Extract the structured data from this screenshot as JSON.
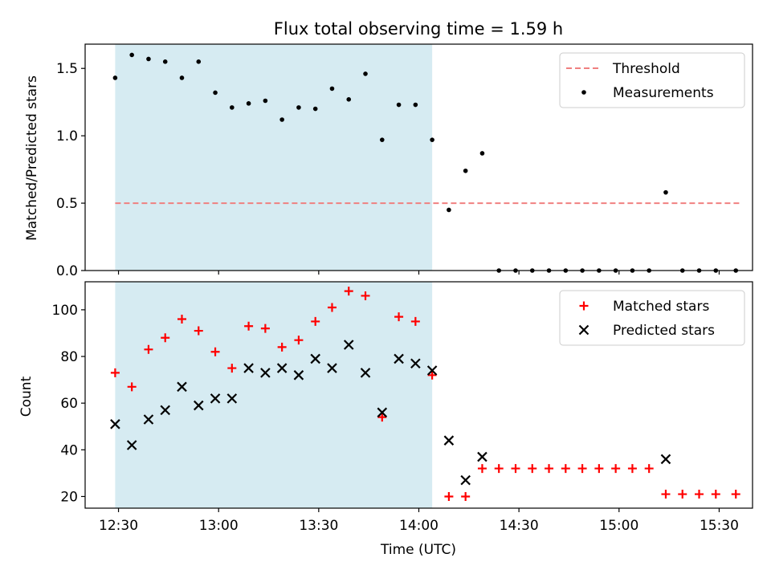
{
  "chart_data": {
    "title": "Flux total observing time = 1.59 h",
    "xlabel": "Time (UTC)",
    "x_ticks": [
      "12:30",
      "13:00",
      "13:30",
      "14:00",
      "14:30",
      "15:00",
      "15:30"
    ],
    "x_range": [
      "12:20",
      "15:40"
    ],
    "shaded_interval": [
      "12:29",
      "14:04"
    ],
    "shade_color": "#add8e6",
    "charts": [
      {
        "type": "scatter",
        "ylabel": "Matched/Predicted stars",
        "ylim": [
          0,
          1.68
        ],
        "y_ticks": [
          "0.0",
          "0.5",
          "1.0",
          "1.5"
        ],
        "series": [
          {
            "name": "Threshold",
            "kind": "dashed-line",
            "color": "#f08080",
            "y": 0.5,
            "x_span": [
              "12:29",
              "15:36"
            ]
          },
          {
            "name": "Measurements",
            "kind": "dot",
            "color": "#000000",
            "x": [
              "12:29",
              "12:34",
              "12:39",
              "12:44",
              "12:49",
              "12:54",
              "12:59",
              "13:04",
              "13:09",
              "13:14",
              "13:19",
              "13:24",
              "13:29",
              "13:34",
              "13:39",
              "13:44",
              "13:49",
              "13:54",
              "13:59",
              "14:04",
              "14:09",
              "14:14",
              "14:19",
              "14:24",
              "14:29",
              "14:34",
              "14:39",
              "14:44",
              "14:49",
              "14:54",
              "14:59",
              "15:04",
              "15:09",
              "15:14",
              "15:19",
              "15:24",
              "15:29",
              "15:35"
            ],
            "y": [
              1.43,
              1.6,
              1.57,
              1.55,
              1.43,
              1.55,
              1.32,
              1.21,
              1.24,
              1.26,
              1.12,
              1.21,
              1.2,
              1.35,
              1.27,
              1.46,
              0.97,
              1.23,
              1.23,
              0.97,
              0.45,
              0.74,
              0.87,
              0,
              0,
              0,
              0,
              0,
              0,
              0,
              0,
              0,
              0,
              0.58,
              0,
              0,
              0,
              0
            ]
          }
        ]
      },
      {
        "type": "scatter",
        "ylabel": "Count",
        "ylim": [
          15,
          112
        ],
        "y_ticks": [
          "20",
          "40",
          "60",
          "80",
          "100"
        ],
        "series": [
          {
            "name": "Matched stars",
            "kind": "plus",
            "color": "#ff0000",
            "x": [
              "12:29",
              "12:34",
              "12:39",
              "12:44",
              "12:49",
              "12:54",
              "12:59",
              "13:04",
              "13:09",
              "13:14",
              "13:19",
              "13:24",
              "13:29",
              "13:34",
              "13:39",
              "13:44",
              "13:49",
              "13:54",
              "13:59",
              "14:04",
              "14:09",
              "14:14",
              "14:19",
              "14:24",
              "14:29",
              "14:34",
              "14:39",
              "14:44",
              "14:49",
              "14:54",
              "14:59",
              "15:04",
              "15:09",
              "15:14",
              "15:19",
              "15:24",
              "15:29",
              "15:35"
            ],
            "y": [
              73,
              67,
              83,
              88,
              96,
              91,
              82,
              75,
              93,
              92,
              84,
              87,
              95,
              101,
              108,
              106,
              54,
              97,
              95,
              72,
              20,
              20,
              32,
              32,
              32,
              32,
              32,
              32,
              32,
              32,
              32,
              32,
              32,
              21,
              21,
              21,
              21,
              21
            ]
          },
          {
            "name": "Predicted stars",
            "kind": "cross",
            "color": "#000000",
            "x": [
              "12:29",
              "12:34",
              "12:39",
              "12:44",
              "12:49",
              "12:54",
              "12:59",
              "13:04",
              "13:09",
              "13:14",
              "13:19",
              "13:24",
              "13:29",
              "13:34",
              "13:39",
              "13:44",
              "13:49",
              "13:54",
              "13:59",
              "14:04",
              "14:09",
              "14:14",
              "14:19",
              "15:14"
            ],
            "y": [
              51,
              42,
              53,
              57,
              67,
              59,
              62,
              62,
              75,
              73,
              75,
              72,
              79,
              75,
              85,
              73,
              56,
              79,
              77,
              74,
              44,
              27,
              37,
              36
            ]
          }
        ]
      }
    ]
  }
}
